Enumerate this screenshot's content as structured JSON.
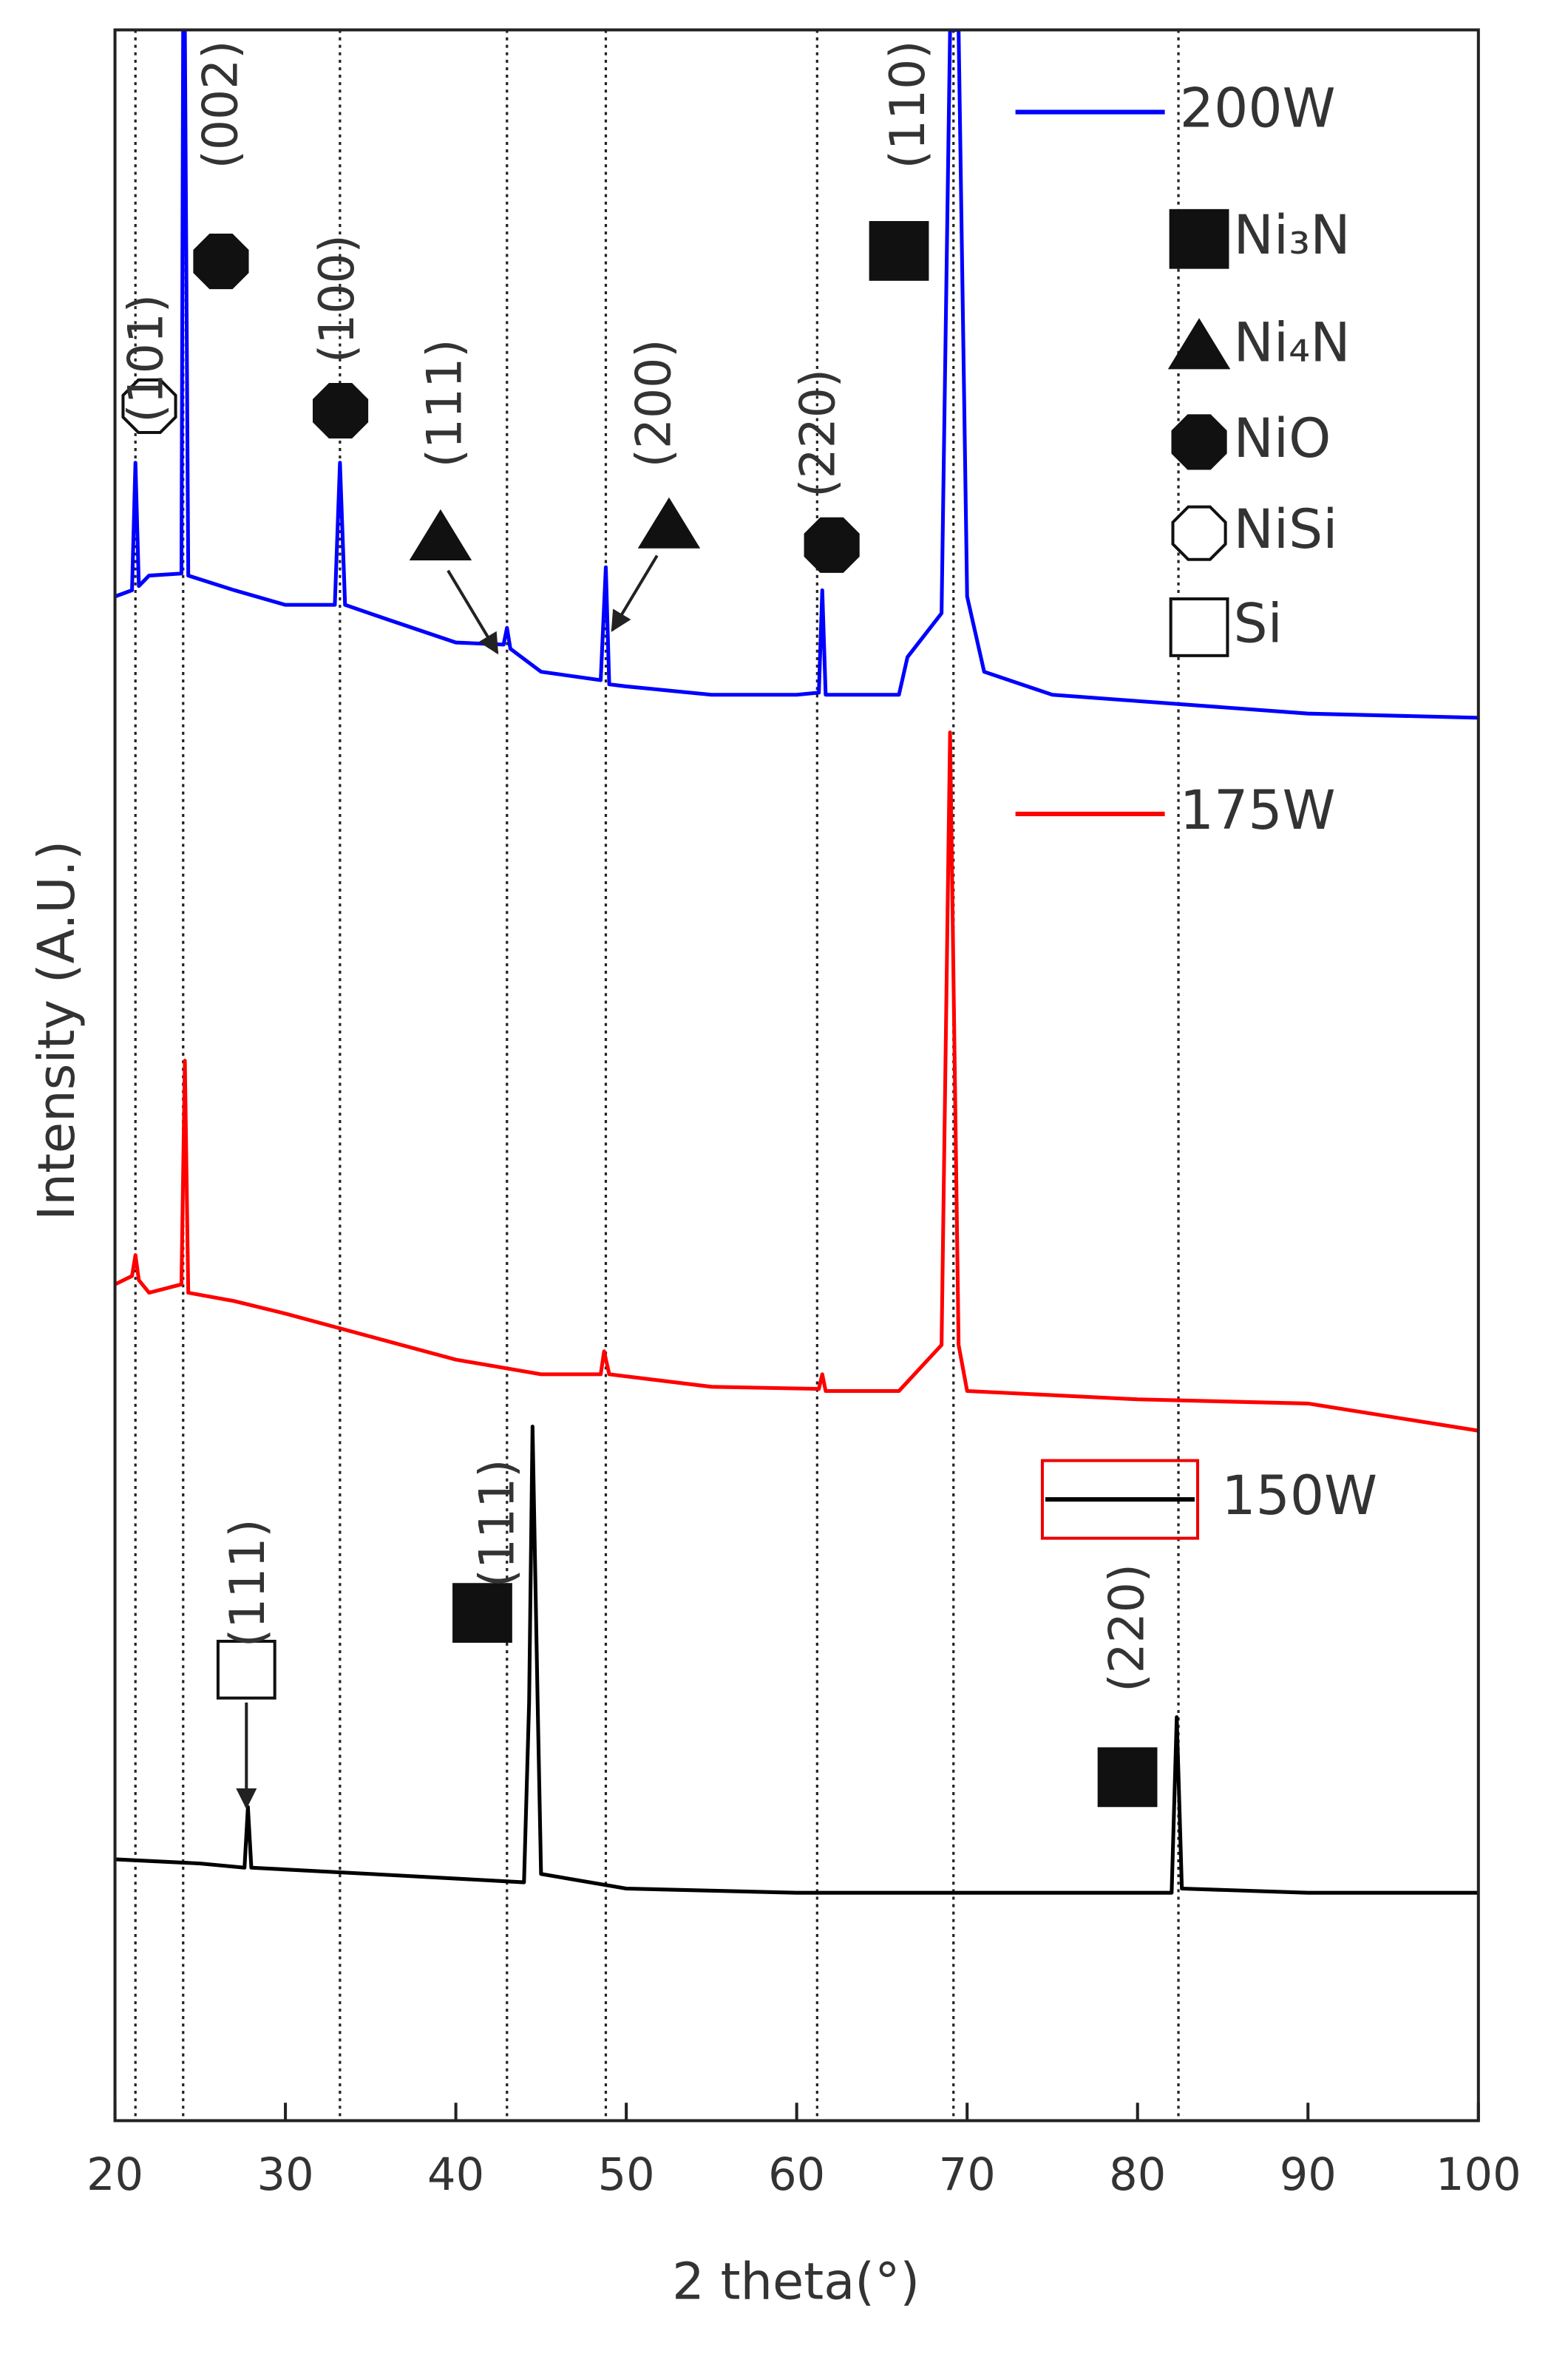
{
  "chart_data": {
    "type": "line",
    "xlabel": "2 theta(°)",
    "ylabel": "Intensity (A.U.)",
    "xlim": [
      20,
      100
    ],
    "xticks": [
      20,
      30,
      40,
      50,
      60,
      70,
      80,
      90,
      100
    ],
    "ylim": [
      0,
      100
    ],
    "series": [
      {
        "name": "200W",
        "color": "#0000ff",
        "x": [
          20,
          21,
          21.2,
          21.4,
          22,
          23.9,
          24,
          24.1,
          24.3,
          27,
          30,
          32.9,
          33.2,
          33.5,
          36,
          40,
          42.8,
          43,
          43.2,
          45,
          48.5,
          48.8,
          49,
          50,
          55,
          60,
          61.3,
          61.5,
          61.7,
          63,
          66,
          66.5,
          68.5,
          69,
          69.5,
          70,
          71,
          75,
          80,
          90,
          100
        ],
        "values": [
          72.9,
          73.2,
          79.3,
          73.4,
          73.9,
          74,
          100,
          100,
          73.9,
          73.2,
          72.5,
          72.5,
          79.3,
          72.5,
          71.8,
          70.7,
          70.6,
          71.4,
          70.4,
          69.3,
          68.9,
          74.3,
          68.7,
          68.6,
          68.2,
          68.2,
          68.3,
          73.2,
          68.2,
          68.2,
          68.2,
          70,
          72.1,
          100,
          100,
          72.9,
          69.3,
          68.2,
          67.9,
          67.3,
          67.1
        ]
      },
      {
        "name": "175W",
        "color": "#ff0000",
        "x": [
          20,
          21,
          21.2,
          21.4,
          22,
          23.9,
          24.1,
          24.3,
          27,
          30,
          35,
          40,
          45,
          48.5,
          48.7,
          49,
          55,
          61.3,
          61.5,
          61.7,
          66,
          68.5,
          69,
          69.5,
          70,
          80,
          90,
          100
        ],
        "values": [
          40,
          40.4,
          41.4,
          40.2,
          39.6,
          40,
          50.7,
          39.6,
          39.2,
          38.6,
          37.5,
          36.4,
          35.7,
          35.7,
          36.8,
          35.7,
          35.1,
          35,
          35.7,
          34.9,
          34.9,
          37.1,
          66.4,
          37.1,
          34.9,
          34.5,
          34.3,
          33
        ],
        "axis": "y"
      },
      {
        "name": "150W",
        "color": "#000000",
        "x": [
          20,
          25,
          27.6,
          27.8,
          28,
          35,
          44,
          44.3,
          44.5,
          44.8,
          45,
          50,
          60,
          70,
          82,
          82.3,
          82.6,
          90,
          100
        ],
        "values": [
          12.5,
          12.3,
          12.1,
          15,
          12.1,
          11.8,
          11.4,
          20,
          33.2,
          20,
          11.8,
          11.1,
          10.9,
          10.9,
          10.9,
          19.3,
          11.1,
          10.9,
          10.9
        ]
      }
    ],
    "reference_lines": [
      21.2,
      24,
      33.2,
      43,
      48.8,
      61.2,
      69.2,
      82.4
    ],
    "annotations": [
      "(101)",
      "(002)",
      "(100)",
      "(111)",
      "(200)",
      "(220)",
      "(110)",
      "(111)",
      "(111)",
      "(220)"
    ],
    "phases": [
      "Ni₃N",
      "Ni₄N",
      "NiO",
      "NiSi",
      "Si"
    ]
  }
}
